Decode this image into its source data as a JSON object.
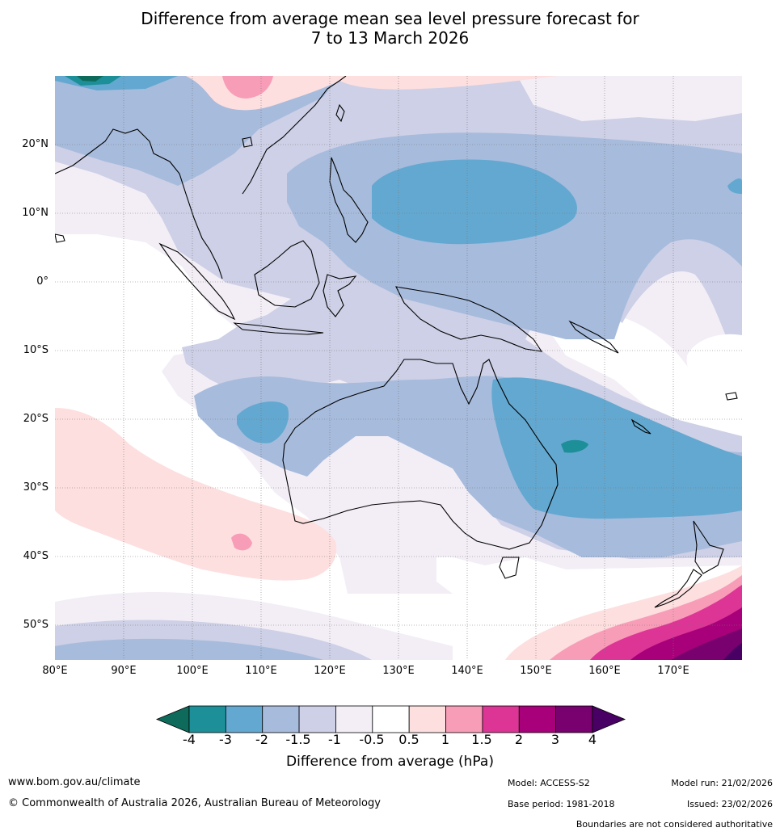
{
  "title": {
    "line1": "Difference from average mean sea level pressure forecast for",
    "line2": "7 to 13 March 2026"
  },
  "map": {
    "lat_labels": [
      "20°N",
      "10°N",
      "0°",
      "10°S",
      "20°S",
      "30°S",
      "40°S",
      "50°S"
    ],
    "lon_labels": [
      "80°E",
      "90°E",
      "100°E",
      "110°E",
      "120°E",
      "130°E",
      "140°E",
      "150°E",
      "160°E",
      "170°E"
    ]
  },
  "colorbar": {
    "labels": [
      "-4",
      "-3",
      "-2",
      "-1.5",
      "-1",
      "-0.5",
      "0.5",
      "1",
      "1.5",
      "2",
      "3",
      "4"
    ],
    "colors": [
      "#0e6b5c",
      "#1d8f98",
      "#63a8d0",
      "#a7bbdc",
      "#cdd0e6",
      "#f3eef6",
      "#ffffff",
      "#fddfdf",
      "#f89db8",
      "#dc3596",
      "#a8007a",
      "#78006f",
      "#480064"
    ],
    "title": "Difference from average (hPa)"
  },
  "footer": {
    "website": "www.bom.gov.au/climate",
    "copyright": "© Commonwealth of Australia 2026, Australian Bureau of Meteorology",
    "model": "Model: ACCESS-S2",
    "base_period": "Base period: 1981-2018",
    "model_run": "Model run: 21/02/2026",
    "issued": "Issued: 23/02/2026",
    "disclaimer": "Boundaries are not considered authoritative"
  }
}
